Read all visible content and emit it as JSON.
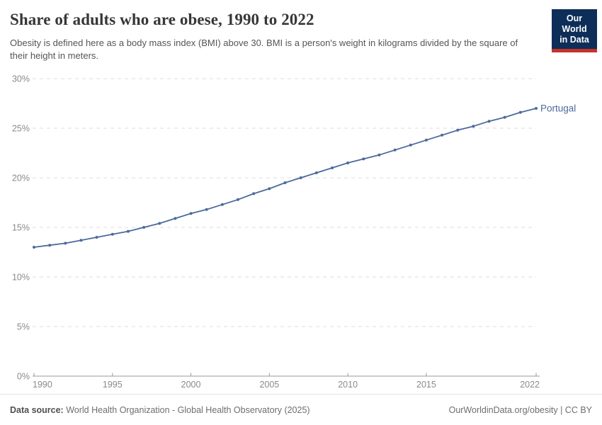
{
  "header": {
    "title": "Share of adults who are obese, 1990 to 2022",
    "subtitle": "Obesity is defined here as a body mass index (BMI) above 30. BMI is a person's weight in kilograms divided by the square of their height in meters.",
    "logo": {
      "line1": "Our World",
      "line2": "in Data",
      "bg_color": "#0d2e58",
      "accent_color": "#c5332a"
    }
  },
  "chart_data": {
    "type": "line",
    "title": "Share of adults who are obese, 1990 to 2022",
    "xlabel": "",
    "ylabel": "",
    "x": [
      1990,
      1991,
      1992,
      1993,
      1994,
      1995,
      1996,
      1997,
      1998,
      1999,
      2000,
      2001,
      2002,
      2003,
      2004,
      2005,
      2006,
      2007,
      2008,
      2009,
      2010,
      2011,
      2012,
      2013,
      2014,
      2015,
      2016,
      2017,
      2018,
      2019,
      2020,
      2021,
      2022
    ],
    "series": [
      {
        "name": "Portugal",
        "color": "#4C6A9C",
        "values": [
          13.0,
          13.2,
          13.4,
          13.7,
          14.0,
          14.3,
          14.6,
          15.0,
          15.4,
          15.9,
          16.4,
          16.8,
          17.3,
          17.8,
          18.4,
          18.9,
          19.5,
          20.0,
          20.5,
          21.0,
          21.5,
          21.9,
          22.3,
          22.8,
          23.3,
          23.8,
          24.3,
          24.8,
          25.2,
          25.7,
          26.1,
          26.6,
          27.0
        ]
      }
    ],
    "ylim": [
      0,
      30
    ],
    "x_range": [
      1990,
      2022
    ],
    "yticks": [
      {
        "v": 0,
        "label": "0%"
      },
      {
        "v": 5,
        "label": "5%"
      },
      {
        "v": 10,
        "label": "10%"
      },
      {
        "v": 15,
        "label": "15%"
      },
      {
        "v": 20,
        "label": "20%"
      },
      {
        "v": 25,
        "label": "25%"
      },
      {
        "v": 30,
        "label": "30%"
      }
    ],
    "xticks": [
      {
        "v": 1990,
        "label": "1990"
      },
      {
        "v": 1995,
        "label": "1995"
      },
      {
        "v": 2000,
        "label": "2000"
      },
      {
        "v": 2005,
        "label": "2005"
      },
      {
        "v": 2010,
        "label": "2010"
      },
      {
        "v": 2015,
        "label": "2015"
      },
      {
        "v": 2022,
        "label": "2022"
      }
    ],
    "legend_position": "end-of-line",
    "grid": "horizontal-dashed",
    "grid_color": "#dcdcdc",
    "axis_color": "#9a9a9a",
    "tick_label_color": "#8a8a8a"
  },
  "footer": {
    "data_source_label": "Data source:",
    "data_source_value": " World Health Organization - Global Health Observatory (2025)",
    "attribution": "OurWorldinData.org/obesity | CC BY"
  }
}
